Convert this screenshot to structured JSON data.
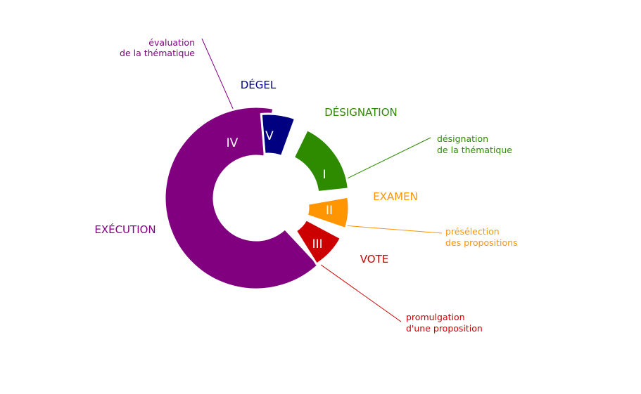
{
  "segments": [
    {
      "id": "s1",
      "numeral": "I",
      "phase": "DÉSIGNATION",
      "color": "#2e8b00"
    },
    {
      "id": "s2",
      "numeral": "II",
      "phase": "EXAMEN",
      "color": "#ff9500"
    },
    {
      "id": "s3",
      "numeral": "III",
      "phase": "VOTE",
      "color": "#cc0000"
    },
    {
      "id": "s4",
      "numeral": "IV",
      "phase": "EXÉCUTION",
      "color": "#800080"
    },
    {
      "id": "s5",
      "numeral": "V",
      "phase": "DÉGEL",
      "color": "#000080"
    }
  ],
  "annotations": {
    "evaluation": {
      "line1": "évaluation",
      "line2": "de la thématique",
      "color": "#800080"
    },
    "designation": {
      "line1": "désignation",
      "line2": "de la thématique",
      "color": "#2e8b00"
    },
    "preselection": {
      "line1": "présélection",
      "line2": "des propositions",
      "color": "#ff9500"
    },
    "promulgation": {
      "line1": "promulgation",
      "line2": "d'une proposition",
      "color": "#cc0000"
    }
  }
}
